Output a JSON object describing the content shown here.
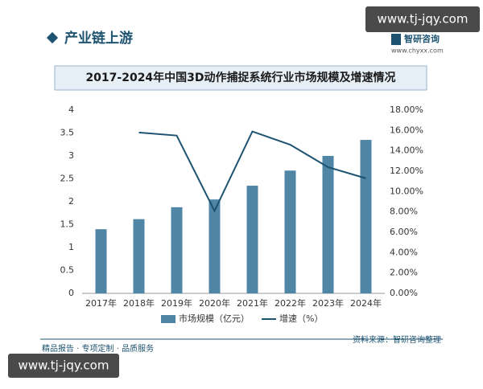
{
  "header": {
    "title": "产业链上游",
    "logo_text": "智研咨询",
    "logo_url": "www.chyxx.com"
  },
  "watermarks": [
    "www.tj-jqy.com",
    "www.tj-jqy.com"
  ],
  "chart_data": {
    "type": "bar-line",
    "title": "2017-2024年中国3D动作捕捉系统行业市场规模及增速情况",
    "categories": [
      "2017年",
      "2018年",
      "2019年",
      "2020年",
      "2021年",
      "2022年",
      "2023年",
      "2024年"
    ],
    "series": [
      {
        "name": "市场规模（亿元）",
        "color": "#4f86a6",
        "type": "bar",
        "values": [
          1.4,
          1.62,
          1.88,
          2.05,
          2.35,
          2.68,
          3.0,
          3.35
        ]
      },
      {
        "name": "增速（%）",
        "color": "#1d5370",
        "type": "line",
        "axis": "y2",
        "values": [
          null,
          15.8,
          15.5,
          8.1,
          15.9,
          14.6,
          12.4,
          11.3
        ]
      }
    ],
    "ylim": [
      0,
      4
    ],
    "yticks": [
      0,
      0.5,
      1,
      1.5,
      2,
      2.5,
      3,
      3.5,
      4
    ],
    "y2lim": [
      0,
      18
    ],
    "y2ticks": [
      {
        "value": 0,
        "label": "0.00%"
      },
      {
        "value": 2,
        "label": "2.00%"
      },
      {
        "value": 4,
        "label": "4.00%"
      },
      {
        "value": 6,
        "label": "6.00%"
      },
      {
        "value": 8,
        "label": "8.00%"
      },
      {
        "value": 10,
        "label": "10.00%"
      },
      {
        "value": 12,
        "label": "12.00%"
      },
      {
        "value": 14,
        "label": "14.00%"
      },
      {
        "value": 16,
        "label": "16.00%"
      },
      {
        "value": 18,
        "label": "18.00%"
      }
    ],
    "grid": false
  },
  "footer": {
    "left": "精品报告 · 专项定制 · 品质服务",
    "source": "资料来源：智研咨询整理"
  }
}
